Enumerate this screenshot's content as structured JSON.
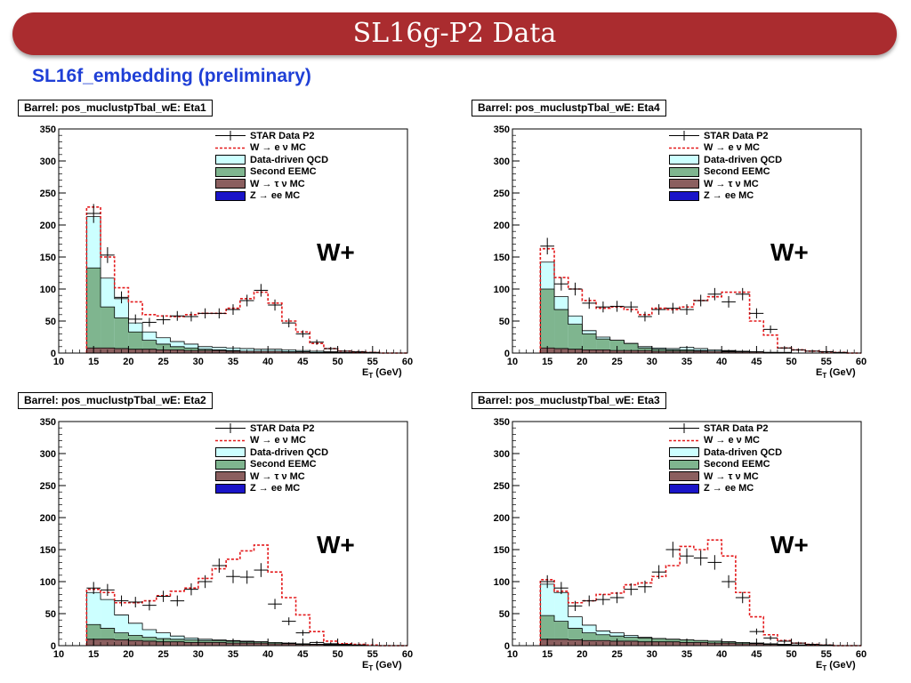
{
  "header": {
    "title": "SL16g-P2 Data",
    "subtitle": "SL16f_embedding (preliminary)"
  },
  "colors": {
    "banner": "#aa2c2f",
    "subtitle": "#1f3fd6",
    "data": "#000000",
    "w_e_nu_mc": "#e41a1c",
    "qcd": "#ccffff",
    "second_eemc": "#7fb58f",
    "w_tau_nu": "#8b5f5f",
    "z_ee": "#1a14c8"
  },
  "legend_labels": {
    "data": "STAR Data P2",
    "w_e_nu": "W → e ν MC",
    "qcd": "Data-driven QCD",
    "eemc": "Second EEMC",
    "w_tau_nu": "W → τ ν MC",
    "z_ee": "Z → ee MC"
  },
  "chart_data": [
    {
      "type": "histogram",
      "title": "Barrel: pos_muclustpTbal_wE: Eta1",
      "annotation": "W+",
      "xlabel_main": "E",
      "xlabel_sub": "T",
      "xlabel_unit": " (GeV)",
      "xlim": [
        10,
        60
      ],
      "ylim": [
        0,
        350
      ],
      "xticks": [
        10,
        15,
        20,
        25,
        30,
        35,
        40,
        45,
        50,
        55,
        60
      ],
      "yticks": [
        0,
        50,
        100,
        150,
        200,
        250,
        300,
        350
      ],
      "bin_edges": [
        14,
        16,
        18,
        20,
        22,
        24,
        26,
        28,
        30,
        32,
        34,
        36,
        38,
        40,
        42,
        44,
        46,
        48,
        50,
        52,
        54,
        56,
        58,
        60
      ],
      "series": [
        {
          "key": "w_tau_nu",
          "values": [
            8,
            8,
            7,
            6,
            6,
            5,
            5,
            4,
            4,
            4,
            3,
            3,
            3,
            3,
            2,
            2,
            1,
            1,
            0,
            0,
            0,
            0,
            0
          ]
        },
        {
          "key": "eemc",
          "values": [
            133,
            72,
            55,
            33,
            20,
            14,
            10,
            8,
            6,
            5,
            4,
            3,
            3,
            3,
            2,
            2,
            1,
            1,
            0,
            0,
            0,
            0,
            0
          ]
        },
        {
          "key": "qcd",
          "values": [
            213,
            117,
            85,
            47,
            33,
            24,
            18,
            14,
            10,
            9,
            8,
            7,
            6,
            6,
            5,
            4,
            3,
            2,
            1,
            1,
            0,
            0,
            0
          ]
        },
        {
          "key": "w_e_nu",
          "values": [
            228,
            150,
            102,
            80,
            60,
            58,
            57,
            60,
            62,
            62,
            70,
            85,
            95,
            78,
            50,
            33,
            15,
            7,
            3,
            2,
            1,
            0,
            0
          ]
        },
        {
          "key": "data",
          "values": [
            218,
            153,
            87,
            53,
            48,
            52,
            58,
            57,
            62,
            62,
            68,
            82,
            98,
            75,
            47,
            30,
            17,
            7,
            3,
            2,
            1,
            0,
            0
          ]
        }
      ]
    },
    {
      "type": "histogram",
      "title": "Barrel: pos_muclustpTbal_wE: Eta4",
      "annotation": "W+",
      "xlabel_main": "E",
      "xlabel_sub": "T",
      "xlabel_unit": " (GeV)",
      "xlim": [
        10,
        60
      ],
      "ylim": [
        0,
        350
      ],
      "xticks": [
        10,
        15,
        20,
        25,
        30,
        35,
        40,
        45,
        50,
        55,
        60
      ],
      "yticks": [
        0,
        50,
        100,
        150,
        200,
        250,
        300,
        350
      ],
      "bin_edges": [
        14,
        16,
        18,
        20,
        22,
        24,
        26,
        28,
        30,
        32,
        34,
        36,
        38,
        40,
        42,
        44,
        46,
        48,
        50,
        52,
        54,
        56,
        58,
        60
      ],
      "series": [
        {
          "key": "w_tau_nu",
          "values": [
            8,
            7,
            6,
            5,
            5,
            4,
            4,
            4,
            3,
            3,
            3,
            3,
            3,
            2,
            2,
            2,
            1,
            1,
            0,
            0,
            0,
            0,
            0
          ]
        },
        {
          "key": "eemc",
          "values": [
            100,
            68,
            45,
            30,
            22,
            20,
            15,
            8,
            6,
            5,
            5,
            4,
            3,
            3,
            2,
            1,
            1,
            0,
            0,
            0,
            0,
            0,
            0
          ]
        },
        {
          "key": "qcd",
          "values": [
            142,
            88,
            58,
            35,
            25,
            20,
            15,
            10,
            8,
            7,
            9,
            7,
            5,
            4,
            3,
            2,
            1,
            1,
            0,
            0,
            0,
            0,
            0
          ]
        },
        {
          "key": "w_e_nu",
          "values": [
            163,
            118,
            100,
            82,
            70,
            72,
            68,
            60,
            70,
            68,
            72,
            82,
            88,
            95,
            95,
            50,
            28,
            8,
            5,
            3,
            2,
            1,
            0
          ]
        },
        {
          "key": "data",
          "values": [
            167,
            108,
            100,
            78,
            72,
            73,
            72,
            57,
            68,
            70,
            68,
            82,
            92,
            80,
            92,
            62,
            37,
            8,
            5,
            3,
            2,
            1,
            0
          ]
        }
      ]
    },
    {
      "type": "histogram",
      "title": "Barrel: pos_muclustpTbal_wE: Eta2",
      "annotation": "W+",
      "xlabel_main": "E",
      "xlabel_sub": "T",
      "xlabel_unit": " (GeV)",
      "xlim": [
        10,
        60
      ],
      "ylim": [
        0,
        350
      ],
      "xticks": [
        10,
        15,
        20,
        25,
        30,
        35,
        40,
        45,
        50,
        55,
        60
      ],
      "yticks": [
        0,
        50,
        100,
        150,
        200,
        250,
        300,
        350
      ],
      "bin_edges": [
        14,
        16,
        18,
        20,
        22,
        24,
        26,
        28,
        30,
        32,
        34,
        36,
        38,
        40,
        42,
        44,
        46,
        48,
        50,
        52,
        54,
        56,
        58,
        60
      ],
      "series": [
        {
          "key": "w_tau_nu",
          "values": [
            10,
            10,
            9,
            8,
            7,
            6,
            6,
            5,
            5,
            5,
            4,
            4,
            4,
            3,
            3,
            2,
            2,
            1,
            1,
            0,
            0,
            0,
            0
          ]
        },
        {
          "key": "eemc",
          "values": [
            33,
            27,
            20,
            16,
            13,
            11,
            10,
            9,
            8,
            8,
            7,
            6,
            6,
            5,
            4,
            3,
            2,
            2,
            1,
            1,
            0,
            0,
            0
          ]
        },
        {
          "key": "qcd",
          "values": [
            83,
            72,
            48,
            35,
            25,
            20,
            15,
            12,
            10,
            9,
            8,
            7,
            6,
            5,
            4,
            3,
            2,
            2,
            1,
            1,
            0,
            0,
            0
          ]
        },
        {
          "key": "w_e_nu",
          "values": [
            88,
            83,
            67,
            67,
            70,
            78,
            85,
            90,
            105,
            120,
            135,
            148,
            157,
            115,
            75,
            48,
            22,
            7,
            3,
            2,
            1,
            0,
            0
          ]
        },
        {
          "key": "data",
          "values": [
            90,
            87,
            70,
            68,
            63,
            77,
            70,
            88,
            100,
            125,
            108,
            107,
            118,
            65,
            38,
            20,
            5,
            3,
            2,
            1,
            0,
            0,
            0
          ]
        }
      ]
    },
    {
      "type": "histogram",
      "title": "Barrel: pos_muclustpTbal_wE: Eta3",
      "annotation": "W+",
      "xlabel_main": "E",
      "xlabel_sub": "T",
      "xlabel_unit": " (GeV)",
      "xlim": [
        10,
        60
      ],
      "ylim": [
        0,
        350
      ],
      "xticks": [
        10,
        15,
        20,
        25,
        30,
        35,
        40,
        45,
        50,
        55,
        60
      ],
      "yticks": [
        0,
        50,
        100,
        150,
        200,
        250,
        300,
        350
      ],
      "bin_edges": [
        14,
        16,
        18,
        20,
        22,
        24,
        26,
        28,
        30,
        32,
        34,
        36,
        38,
        40,
        42,
        44,
        46,
        48,
        50,
        52,
        54,
        56,
        58,
        60
      ],
      "series": [
        {
          "key": "w_tau_nu",
          "values": [
            10,
            10,
            9,
            8,
            8,
            7,
            7,
            6,
            6,
            6,
            5,
            5,
            4,
            4,
            3,
            3,
            2,
            1,
            1,
            0,
            0,
            0,
            0
          ]
        },
        {
          "key": "eemc",
          "values": [
            47,
            38,
            27,
            20,
            17,
            15,
            13,
            12,
            11,
            10,
            9,
            8,
            7,
            6,
            5,
            4,
            3,
            2,
            1,
            1,
            0,
            0,
            0
          ]
        },
        {
          "key": "qcd",
          "values": [
            96,
            83,
            45,
            32,
            23,
            20,
            16,
            13,
            11,
            10,
            9,
            8,
            7,
            6,
            5,
            4,
            3,
            2,
            1,
            1,
            0,
            0,
            0
          ]
        },
        {
          "key": "w_e_nu",
          "values": [
            103,
            85,
            67,
            70,
            80,
            82,
            95,
            98,
            108,
            125,
            155,
            150,
            165,
            140,
            83,
            45,
            17,
            8,
            4,
            2,
            1,
            0,
            0
          ]
        },
        {
          "key": "data",
          "values": [
            100,
            90,
            62,
            70,
            72,
            75,
            88,
            92,
            115,
            150,
            140,
            137,
            130,
            100,
            75,
            22,
            12,
            7,
            4,
            2,
            1,
            0,
            0
          ]
        }
      ]
    }
  ]
}
